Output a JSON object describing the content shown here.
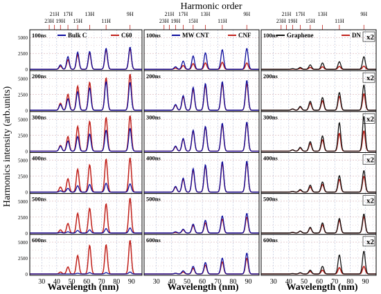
{
  "chart_data": {
    "type": "line",
    "title": "Harmonic order",
    "ylabel": "Harmonics intensity (arb.units)",
    "xlabel": "Wavelength (nm)",
    "xlim": [
      22,
      97
    ],
    "ylim": [
      0,
      6000
    ],
    "x_ticks": [
      30,
      40,
      50,
      60,
      70,
      80,
      90
    ],
    "y_ticks": [
      0,
      2500,
      5000
    ],
    "harmonic_order_labels": [
      "23H",
      "21H",
      "19H",
      "17H",
      "15H",
      "13H",
      "11H",
      "9H"
    ],
    "harmonic_wavelengths": [
      35,
      38.5,
      42.5,
      47.5,
      54,
      62,
      73,
      89
    ],
    "grid": true,
    "scale_label": "x2",
    "panels": [
      {
        "column": 0,
        "legend": [
          {
            "name": "Bulk C",
            "color": "#0a0a9c"
          },
          {
            "name": "C60",
            "color": "#c0201a"
          }
        ],
        "rows": [
          {
            "delay": "100ns",
            "series": [
              [
                0,
                0,
                700,
                2000,
                2700,
                2800,
                3300,
                3500,
                2500
              ],
              [
                0,
                0,
                500,
                1500,
                2300,
                2600,
                3100,
                3300,
                2200
              ]
            ]
          },
          {
            "delay": "200ns",
            "series": [
              [
                0,
                0,
                900,
                1800,
                2900,
                3500,
                4500,
                4400,
                3500
              ],
              [
                0,
                0,
                1100,
                2500,
                3800,
                4400,
                5100,
                5700,
                4000
              ]
            ]
          },
          {
            "delay": "300ns",
            "series": [
              [
                0,
                0,
                800,
                1600,
                2300,
                2700,
                3300,
                3600,
                2600
              ],
              [
                0,
                0,
                900,
                2300,
                3900,
                4700,
                5300,
                5600,
                4600
              ]
            ]
          },
          {
            "delay": "400ns",
            "series": [
              [
                0,
                0,
                200,
                600,
                1000,
                1200,
                1400,
                1300,
                900
              ],
              [
                0,
                0,
                800,
                2100,
                3600,
                4300,
                5200,
                5400,
                4600
              ]
            ]
          },
          {
            "delay": "500ns",
            "series": [
              [
                0,
                0,
                100,
                200,
                400,
                500,
                700,
                800,
                300
              ],
              [
                0,
                0,
                500,
                1500,
                3100,
                3900,
                4600,
                5500,
                5200
              ]
            ]
          },
          {
            "delay": "600ns",
            "series": [
              [
                0,
                0,
                0,
                0,
                100,
                200,
                200,
                300,
                200
              ],
              [
                0,
                0,
                300,
                1100,
                2900,
                4500,
                4600,
                5300,
                4700
              ]
            ]
          }
        ]
      },
      {
        "column": 1,
        "legend": [
          {
            "name": "MW CNT",
            "color": "#0a0a9c"
          },
          {
            "name": "CNF",
            "color": "#c0201a"
          }
        ],
        "rows": [
          {
            "delay": "100ns",
            "series": [
              [
                0,
                0,
                400,
                1300,
                2100,
                2600,
                3100,
                3300,
                2600
              ],
              [
                0,
                0,
                200,
                600,
                900,
                1000,
                1100,
                1000,
                700
              ]
            ]
          },
          {
            "delay": "200ns",
            "series": [
              [
                0,
                0,
                900,
                2300,
                3600,
                4200,
                4500,
                4700,
                4200
              ],
              [
                0,
                0,
                800,
                2100,
                3300,
                3900,
                4200,
                4200,
                3800
              ]
            ]
          },
          {
            "delay": "300ns",
            "series": [
              [
                0,
                0,
                800,
                2000,
                3300,
                3900,
                4400,
                4600,
                4300
              ],
              [
                0,
                0,
                700,
                1900,
                3200,
                3800,
                4200,
                4500,
                4300
              ]
            ]
          },
          {
            "delay": "400ns",
            "series": [
              [
                0,
                0,
                900,
                2200,
                3700,
                4300,
                4800,
                4900,
                4500
              ],
              [
                0,
                0,
                800,
                2000,
                3500,
                4100,
                4600,
                4700,
                4300
              ]
            ]
          },
          {
            "delay": "500ns",
            "series": [
              [
                0,
                0,
                200,
                600,
                1400,
                2000,
                2700,
                3100,
                1800
              ],
              [
                0,
                0,
                100,
                500,
                1200,
                1600,
                2200,
                2500,
                1600
              ]
            ]
          },
          {
            "delay": "600ns",
            "series": [
              [
                0,
                0,
                100,
                500,
                1200,
                1800,
                2500,
                3300,
                1500
              ],
              [
                0,
                0,
                100,
                300,
                900,
                1400,
                1900,
                2500,
                1200
              ]
            ]
          }
        ]
      },
      {
        "column": 2,
        "scaled": true,
        "legend": [
          {
            "name": "Graphene",
            "color": "#111111"
          },
          {
            "name": "DN",
            "color": "#c0201a"
          }
        ],
        "rows": [
          {
            "delay": "100ns",
            "series": [
              [
                0,
                0,
                100,
                300,
                700,
                1000,
                1200,
                2000,
                900
              ],
              [
                0,
                0,
                50,
                150,
                300,
                400,
                450,
                500,
                300
              ]
            ]
          },
          {
            "delay": "200ns",
            "series": [
              [
                0,
                0,
                200,
                600,
                1400,
                2000,
                2800,
                4000,
                1500
              ],
              [
                0,
                0,
                200,
                500,
                1100,
                1500,
                2200,
                2600,
                1100
              ]
            ]
          },
          {
            "delay": "300ns",
            "series": [
              [
                0,
                0,
                200,
                600,
                1500,
                2400,
                4500,
                5500,
                2000
              ],
              [
                0,
                0,
                200,
                500,
                1200,
                1800,
                2800,
                3200,
                1300
              ]
            ]
          },
          {
            "delay": "400ns",
            "series": [
              [
                0,
                0,
                100,
                400,
                1100,
                1600,
                2600,
                3400,
                1400
              ],
              [
                0,
                0,
                100,
                300,
                800,
                1200,
                2000,
                2500,
                1100
              ]
            ]
          },
          {
            "delay": "500ns",
            "series": [
              [
                0,
                0,
                100,
                300,
                900,
                1600,
                2300,
                3000,
                1200
              ],
              [
                0,
                0,
                100,
                300,
                800,
                1300,
                2000,
                2600,
                1000
              ]
            ]
          },
          {
            "delay": "600ns",
            "series": [
              [
                0,
                0,
                50,
                200,
                600,
                1200,
                3000,
                3600,
                1000
              ],
              [
                0,
                0,
                50,
                150,
                400,
                600,
                1000,
                1200,
                500
              ]
            ]
          }
        ]
      }
    ]
  }
}
